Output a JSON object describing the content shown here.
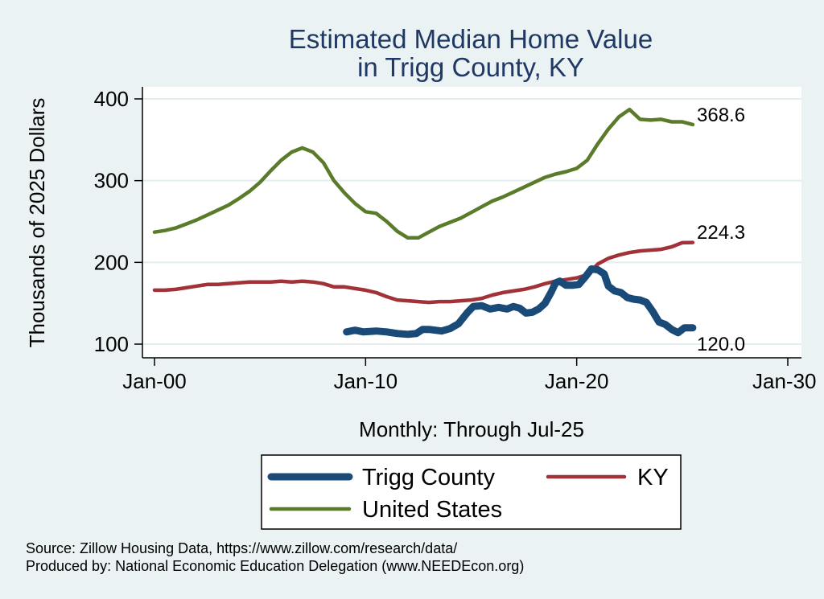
{
  "chart_data": {
    "type": "line",
    "title_lines": [
      "Estimated Median Home Value",
      "in Trigg County, KY"
    ],
    "ylabel": "Thousands of 2025 Dollars",
    "xlabel": "Monthly: Through Jul-25",
    "ylim": [
      90,
      410
    ],
    "yticks": [
      100,
      200,
      300,
      400
    ],
    "xlim": [
      2000,
      2030
    ],
    "xticks": [
      {
        "value": 2000,
        "label": "Jan-00"
      },
      {
        "value": 2010,
        "label": "Jan-10"
      },
      {
        "value": 2020,
        "label": "Jan-20"
      },
      {
        "value": 2030,
        "label": "Jan-30"
      }
    ],
    "grid": "horizontal",
    "series": [
      {
        "name": "Trigg County",
        "color": "#1a4a78",
        "end_label": "120.0",
        "points": [
          [
            2009.1,
            115
          ],
          [
            2009.5,
            117
          ],
          [
            2009.9,
            115
          ],
          [
            2010.5,
            116
          ],
          [
            2011.0,
            115
          ],
          [
            2011.5,
            113
          ],
          [
            2012.0,
            112
          ],
          [
            2012.4,
            113
          ],
          [
            2012.7,
            118
          ],
          [
            2013.0,
            118
          ],
          [
            2013.3,
            117
          ],
          [
            2013.6,
            116
          ],
          [
            2014.0,
            119
          ],
          [
            2014.4,
            125
          ],
          [
            2014.8,
            138
          ],
          [
            2015.1,
            146
          ],
          [
            2015.5,
            147
          ],
          [
            2015.9,
            143
          ],
          [
            2016.3,
            145
          ],
          [
            2016.7,
            143
          ],
          [
            2017.0,
            146
          ],
          [
            2017.3,
            144
          ],
          [
            2017.6,
            138
          ],
          [
            2017.9,
            139
          ],
          [
            2018.2,
            143
          ],
          [
            2018.5,
            150
          ],
          [
            2018.8,
            164
          ],
          [
            2019.0,
            175
          ],
          [
            2019.2,
            177
          ],
          [
            2019.5,
            172
          ],
          [
            2019.8,
            172
          ],
          [
            2020.1,
            173
          ],
          [
            2020.4,
            182
          ],
          [
            2020.7,
            192
          ],
          [
            2021.0,
            191
          ],
          [
            2021.3,
            186
          ],
          [
            2021.5,
            171
          ],
          [
            2021.8,
            165
          ],
          [
            2022.1,
            163
          ],
          [
            2022.4,
            157
          ],
          [
            2022.7,
            155
          ],
          [
            2023.0,
            154
          ],
          [
            2023.3,
            151
          ],
          [
            2023.6,
            140
          ],
          [
            2023.9,
            127
          ],
          [
            2024.2,
            124
          ],
          [
            2024.5,
            118
          ],
          [
            2024.8,
            114
          ],
          [
            2025.1,
            120
          ],
          [
            2025.5,
            120
          ]
        ]
      },
      {
        "name": "KY",
        "color": "#a03238",
        "end_label": "224.3",
        "points": [
          [
            2000.0,
            166
          ],
          [
            2000.5,
            166
          ],
          [
            2001.0,
            167
          ],
          [
            2001.5,
            169
          ],
          [
            2002.0,
            171
          ],
          [
            2002.5,
            173
          ],
          [
            2003.0,
            173
          ],
          [
            2003.5,
            174
          ],
          [
            2004.0,
            175
          ],
          [
            2004.5,
            176
          ],
          [
            2005.0,
            176
          ],
          [
            2005.5,
            176
          ],
          [
            2006.0,
            177
          ],
          [
            2006.5,
            176
          ],
          [
            2007.0,
            177
          ],
          [
            2007.5,
            176
          ],
          [
            2008.0,
            174
          ],
          [
            2008.5,
            170
          ],
          [
            2009.0,
            170
          ],
          [
            2009.5,
            168
          ],
          [
            2010.0,
            166
          ],
          [
            2010.5,
            163
          ],
          [
            2011.0,
            158
          ],
          [
            2011.5,
            154
          ],
          [
            2012.0,
            153
          ],
          [
            2012.5,
            152
          ],
          [
            2013.0,
            151
          ],
          [
            2013.5,
            152
          ],
          [
            2014.0,
            152
          ],
          [
            2014.5,
            153
          ],
          [
            2015.0,
            154
          ],
          [
            2015.5,
            156
          ],
          [
            2016.0,
            160
          ],
          [
            2016.5,
            163
          ],
          [
            2017.0,
            165
          ],
          [
            2017.5,
            167
          ],
          [
            2018.0,
            170
          ],
          [
            2018.5,
            174
          ],
          [
            2019.0,
            177
          ],
          [
            2019.5,
            179
          ],
          [
            2020.0,
            181
          ],
          [
            2020.5,
            185
          ],
          [
            2021.0,
            198
          ],
          [
            2021.5,
            205
          ],
          [
            2022.0,
            209
          ],
          [
            2022.5,
            212
          ],
          [
            2023.0,
            214
          ],
          [
            2023.5,
            215
          ],
          [
            2024.0,
            216
          ],
          [
            2024.5,
            219
          ],
          [
            2025.0,
            224
          ],
          [
            2025.5,
            224.3
          ]
        ]
      },
      {
        "name": "United States",
        "color": "#5a7c2a",
        "end_label": "368.6",
        "points": [
          [
            2000.0,
            237
          ],
          [
            2000.5,
            239
          ],
          [
            2001.0,
            242
          ],
          [
            2001.5,
            247
          ],
          [
            2002.0,
            252
          ],
          [
            2002.5,
            258
          ],
          [
            2003.0,
            264
          ],
          [
            2003.5,
            270
          ],
          [
            2004.0,
            278
          ],
          [
            2004.5,
            287
          ],
          [
            2005.0,
            298
          ],
          [
            2005.5,
            312
          ],
          [
            2006.0,
            325
          ],
          [
            2006.5,
            335
          ],
          [
            2007.0,
            340
          ],
          [
            2007.5,
            335
          ],
          [
            2008.0,
            322
          ],
          [
            2008.5,
            300
          ],
          [
            2009.0,
            285
          ],
          [
            2009.5,
            272
          ],
          [
            2010.0,
            262
          ],
          [
            2010.5,
            260
          ],
          [
            2011.0,
            250
          ],
          [
            2011.5,
            238
          ],
          [
            2012.0,
            230
          ],
          [
            2012.5,
            230
          ],
          [
            2013.0,
            237
          ],
          [
            2013.5,
            244
          ],
          [
            2014.0,
            249
          ],
          [
            2014.5,
            254
          ],
          [
            2015.0,
            261
          ],
          [
            2015.5,
            268
          ],
          [
            2016.0,
            275
          ],
          [
            2016.5,
            280
          ],
          [
            2017.0,
            286
          ],
          [
            2017.5,
            292
          ],
          [
            2018.0,
            298
          ],
          [
            2018.5,
            304
          ],
          [
            2019.0,
            308
          ],
          [
            2019.5,
            311
          ],
          [
            2020.0,
            315
          ],
          [
            2020.5,
            325
          ],
          [
            2021.0,
            345
          ],
          [
            2021.5,
            363
          ],
          [
            2022.0,
            378
          ],
          [
            2022.5,
            387
          ],
          [
            2023.0,
            375
          ],
          [
            2023.5,
            374
          ],
          [
            2024.0,
            375
          ],
          [
            2024.5,
            372
          ],
          [
            2025.0,
            372
          ],
          [
            2025.5,
            368.6
          ]
        ]
      }
    ],
    "legend": {
      "placement": "bottom",
      "entries": [
        "Trigg County",
        "KY",
        "United States"
      ]
    },
    "source_lines": [
      "Source: Zillow Housing Data, https://www.zillow.com/research/data/",
      "Produced by: National Economic Education Delegation (www.NEEDEcon.org)"
    ]
  },
  "colors": {
    "background": "#eaf2f3",
    "plot_background": "#ffffff",
    "title": "#1f3864",
    "grid": "#e4eef0"
  }
}
